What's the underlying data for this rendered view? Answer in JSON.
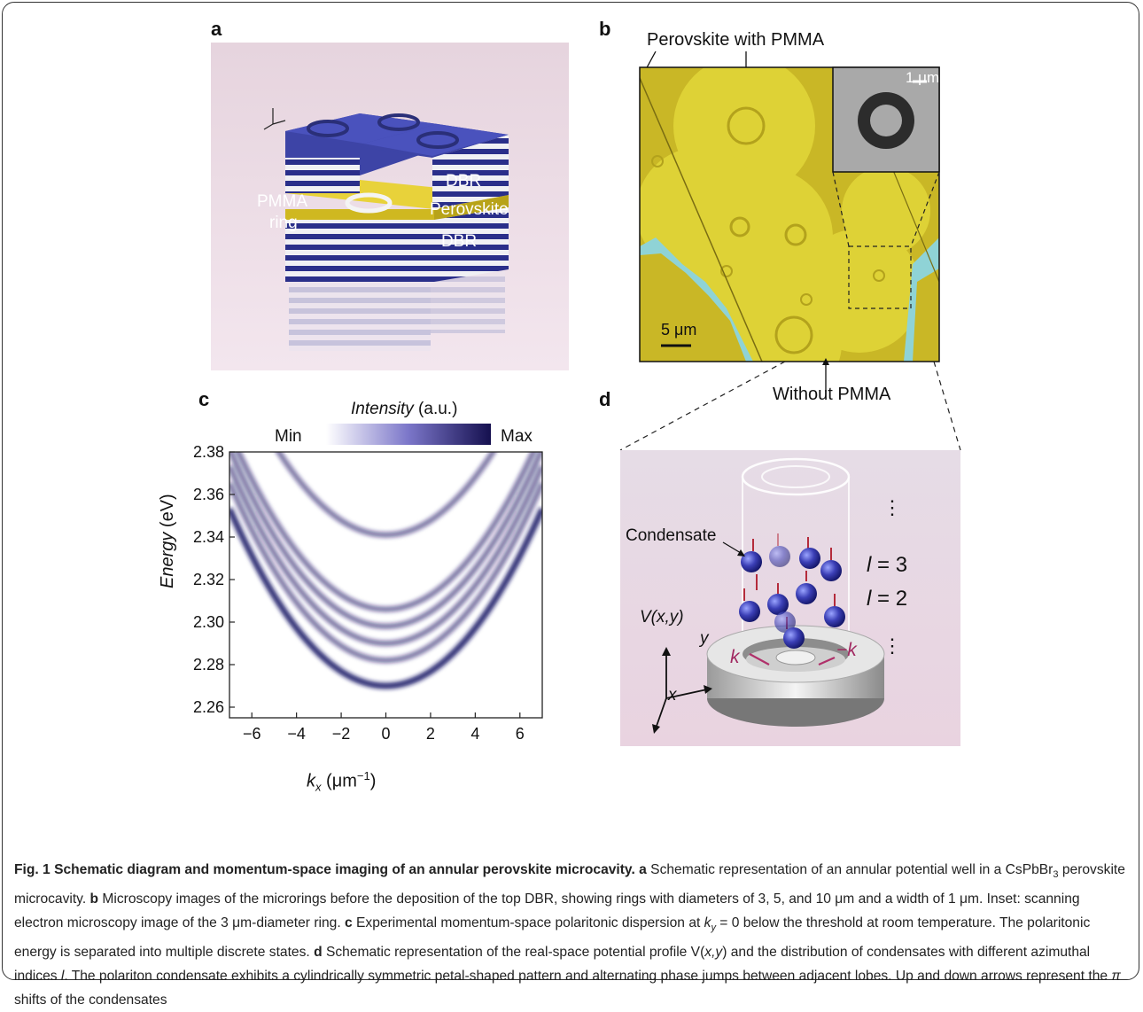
{
  "figure": {
    "panels": {
      "a": {
        "letter": "a",
        "labels": {
          "pmma_line1": "PMMA",
          "pmma_line2": "ring",
          "dbr_top": "DBR",
          "perovskite": "Perovskite",
          "dbr_bottom": "DBR"
        }
      },
      "b": {
        "letter": "b",
        "labels": {
          "perovskite_with_pmma": "Perovskite with PMMA",
          "without_pmma": "Without PMMA",
          "scale_main": "5 μm",
          "scale_inset": "1 μm"
        }
      },
      "c": {
        "letter": "c",
        "colorbar": {
          "title_italic": "Intensity",
          "title_unit": " (a.u.)",
          "min": "Min",
          "max": "Max"
        }
      },
      "d": {
        "letter": "d",
        "labels": {
          "condensate": "Condensate",
          "potential": "V(x,y)",
          "axis_x": "x",
          "axis_y": "y",
          "k_left": "k",
          "k_right": "−k",
          "l3_var": "l",
          "l3_rest": " = 3",
          "l2_var": "l",
          "l2_rest": " = 2",
          "dots": "⋮"
        }
      }
    },
    "caption": {
      "fig_label": "Fig. 1",
      "title": "Schematic diagram and momentum-space imaging of an annular perovskite microcavity.",
      "a_letter": "a",
      "a_text": "Schematic representation of an annular potential well in a CsPbBr",
      "a_sub": "3",
      "a_text2": " perovskite microcavity.",
      "b_letter": "b",
      "b_text": "Microscopy images of the microrings before the deposition of the top DBR, showing rings with diameters of 3, 5, and 10 μm and a width of 1 μm. Inset: scanning electron microscopy image of the 3 μm-diameter ring.",
      "c_letter": "c",
      "c_text1": "Experimental momentum-space polaritonic dispersion at ",
      "c_math": "k",
      "c_math_sub": "y",
      "c_math_rest": " = 0",
      "c_text2": " below the threshold at room temperature. The polaritonic energy is separated into multiple discrete states.",
      "d_letter": "d",
      "d_text1": "Schematic representation of the real-space potential profile V(",
      "d_xy": "x,y",
      "d_text2": ") and the distribution of condensates with different azimuthal indices ",
      "d_l": "l",
      "d_text3": ". The polariton condensate exhibits a cylindrically symmetric petal-shaped pattern and alternating phase jumps between adjacent lobes. Up and down arrows represent the ",
      "d_pi": "π",
      "d_text4": " shifts of the condensates"
    }
  },
  "chart_data": {
    "type": "heatmap",
    "title": "",
    "xlabel": "k_x (μm⁻¹)",
    "xlabel_main": "k",
    "xlabel_sub": "x",
    "xlabel_unit": " (μm",
    "xlabel_exp": "−1",
    "xlabel_close": ")",
    "ylabel": "Energy (eV)",
    "ylabel_italic": "Energy",
    "ylabel_unit": " (eV)",
    "xlim": [
      -7,
      7
    ],
    "ylim": [
      2.255,
      2.38
    ],
    "x_ticks": [
      -6,
      -4,
      -2,
      0,
      2,
      4,
      6
    ],
    "x_tick_labels": [
      "−6",
      "−4",
      "−2",
      "0",
      "2",
      "4",
      "6"
    ],
    "y_ticks": [
      2.26,
      2.28,
      2.3,
      2.32,
      2.34,
      2.36,
      2.38
    ],
    "y_tick_labels": [
      "2.26",
      "2.28",
      "2.30",
      "2.32",
      "2.34",
      "2.36",
      "2.38"
    ],
    "colormap": [
      "#ffffff",
      "#1a1466"
    ],
    "discrete_states": [
      {
        "energy_at_k0": 2.27,
        "curvature": 0.0017
      },
      {
        "energy_at_k0": 2.282,
        "curvature": 0.0017
      },
      {
        "energy_at_k0": 2.29,
        "curvature": 0.0017
      },
      {
        "energy_at_k0": 2.298,
        "curvature": 0.0017
      },
      {
        "energy_at_k0": 2.306,
        "curvature": 0.0017
      },
      {
        "energy_at_k0": 2.341,
        "curvature": 0.0017
      }
    ]
  }
}
